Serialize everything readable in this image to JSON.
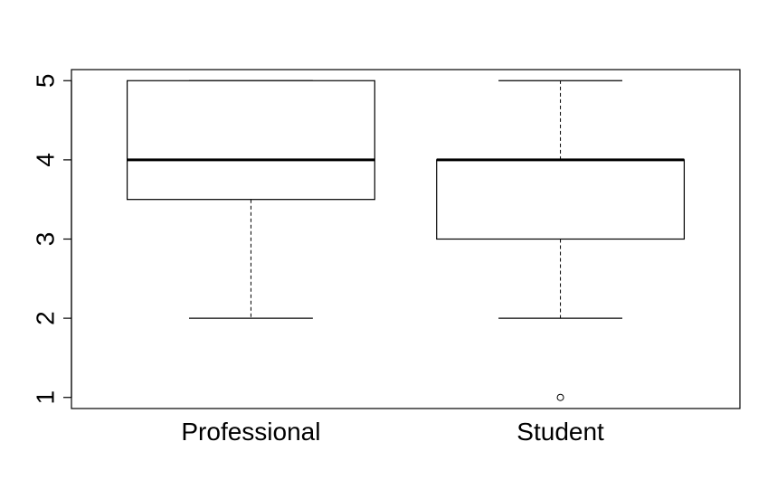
{
  "chart_data": {
    "type": "boxplot",
    "title": "",
    "xlabel": "",
    "ylabel": "",
    "ylim": [
      0.86,
      5.14
    ],
    "yticks": [
      1,
      2,
      3,
      4,
      5
    ],
    "categories": [
      "Professional",
      "Student"
    ],
    "boxes": [
      {
        "category": "Professional",
        "whisker_low": 2,
        "q1": 3.5,
        "median": 4,
        "q3": 5,
        "whisker_high": 5,
        "outliers": []
      },
      {
        "category": "Student",
        "whisker_low": 2,
        "q1": 3,
        "median": 4,
        "q3": 4,
        "whisker_high": 5,
        "outliers": [
          1
        ]
      }
    ],
    "grid": false,
    "colors": {
      "box_fill": "#ffffff",
      "stroke": "#000000"
    }
  }
}
